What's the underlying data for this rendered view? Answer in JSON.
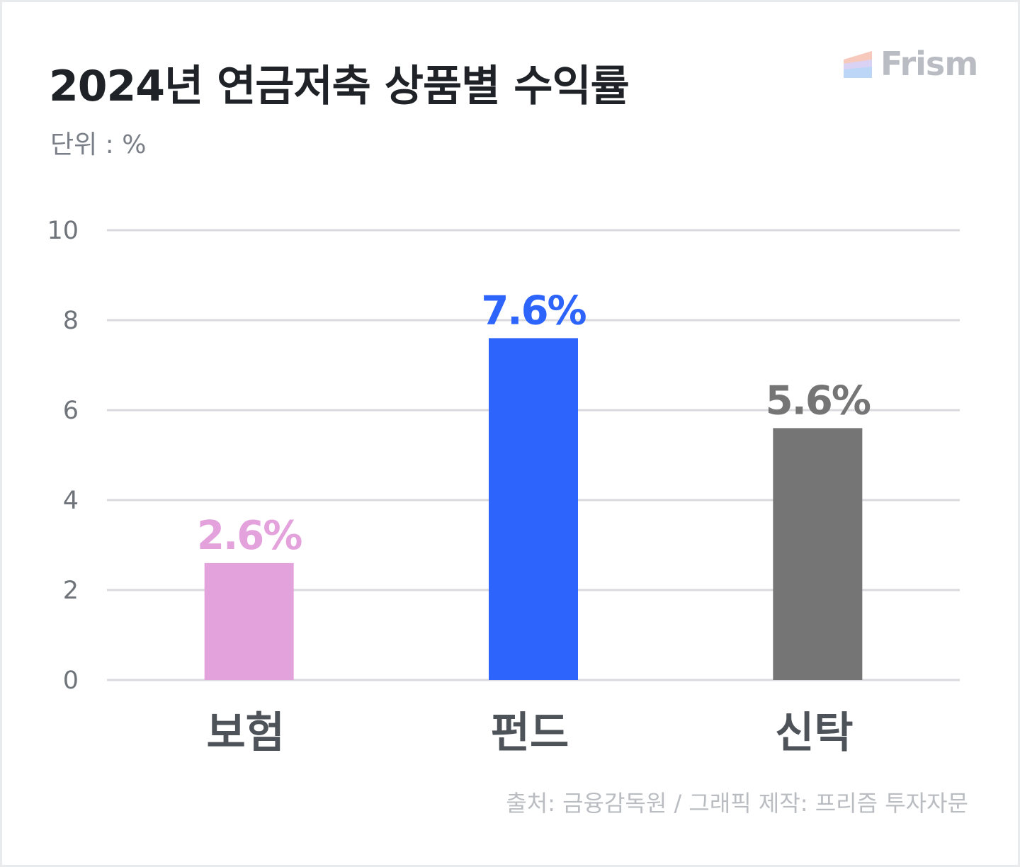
{
  "brand": {
    "name": "Frism",
    "logo_icon": "prism-stripes-icon"
  },
  "source_note": "출처: 금융감독원 / 그래픽 제작: 프리즘 투자자문",
  "chart_data": {
    "type": "bar",
    "title": "2024년 연금저축 상품별 수익률",
    "unit_label": "단위 : %",
    "categories": [
      "보험",
      "펀드",
      "신탁"
    ],
    "values": [
      2.6,
      7.6,
      5.6
    ],
    "data_labels": [
      "2.6%",
      "7.6%",
      "5.6%"
    ],
    "colors": [
      "#e4a2dd",
      "#2d64fb",
      "#757575"
    ],
    "ylim": [
      0,
      10
    ],
    "yticks": [
      0,
      2,
      4,
      6,
      8,
      10
    ],
    "grid": true,
    "legend": "none",
    "xlabel": "",
    "ylabel": ""
  }
}
